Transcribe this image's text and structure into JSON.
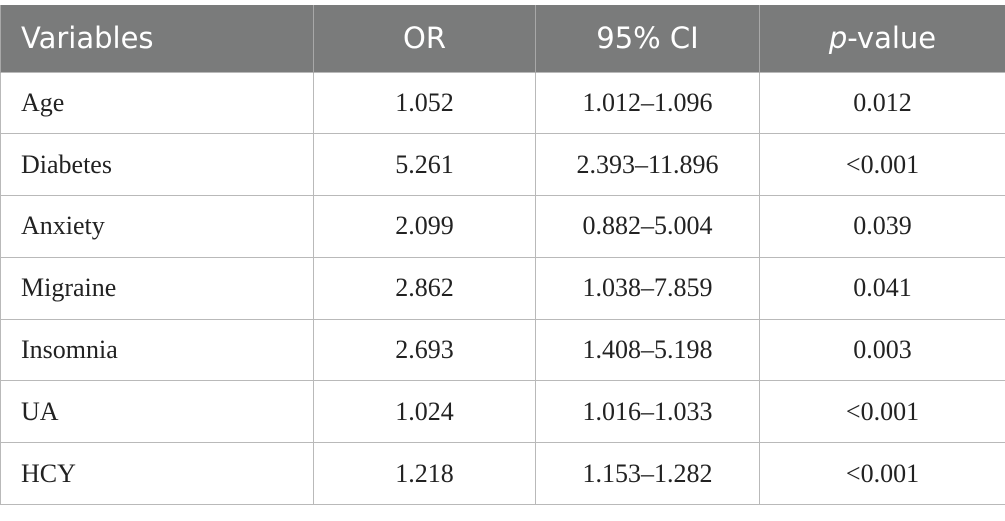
{
  "table": {
    "headers": {
      "variables": "Variables",
      "or": "OR",
      "ci": "95% CI",
      "p_italic": "p",
      "p_rest": "-value"
    },
    "rows": [
      {
        "variable": "Age",
        "or": "1.052",
        "ci": "1.012–1.096",
        "p": "0.012"
      },
      {
        "variable": "Diabetes",
        "or": "5.261",
        "ci": "2.393–11.896",
        "p": "<0.001"
      },
      {
        "variable": "Anxiety",
        "or": "2.099",
        "ci": "0.882–5.004",
        "p": "0.039"
      },
      {
        "variable": "Migraine",
        "or": "2.862",
        "ci": "1.038–7.859",
        "p": "0.041"
      },
      {
        "variable": "Insomnia",
        "or": "2.693",
        "ci": "1.408–5.198",
        "p": "0.003"
      },
      {
        "variable": "UA",
        "or": "1.024",
        "ci": "1.016–1.033",
        "p": "<0.001"
      },
      {
        "variable": "HCY",
        "or": "1.218",
        "ci": "1.153–1.282",
        "p": "<0.001"
      }
    ]
  },
  "colors": {
    "header_bg": "#7a7b7b",
    "header_text": "#ffffff",
    "border": "#b9b9b9"
  }
}
